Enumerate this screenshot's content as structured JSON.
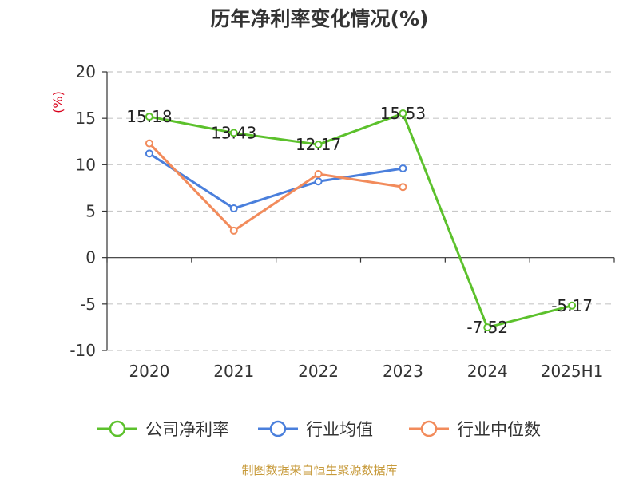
{
  "chart_data": {
    "type": "line",
    "title": "历年净利率变化情况(%)",
    "ylabel": "(%)",
    "xlabel": "",
    "categories": [
      "2020",
      "2021",
      "2022",
      "2023",
      "2024",
      "2025H1"
    ],
    "ylim": [
      -10,
      20
    ],
    "yticks": [
      -10,
      -5,
      0,
      5,
      10,
      15,
      20
    ],
    "grid": true,
    "legend_position": "bottom",
    "series": [
      {
        "name": "公司净利率",
        "color": "#5cc12c",
        "values": [
          15.18,
          13.43,
          12.17,
          15.53,
          -7.52,
          -5.17
        ],
        "labels": [
          "15.18",
          "13.43",
          "12.17",
          "15.53",
          "-7.52",
          "-5.17"
        ]
      },
      {
        "name": "行业均值",
        "color": "#4a7fdc",
        "values": [
          11.2,
          5.3,
          8.2,
          9.6,
          null,
          null
        ]
      },
      {
        "name": "行业中位数",
        "color": "#f28b5b",
        "values": [
          12.3,
          2.9,
          9.0,
          7.6,
          null,
          null
        ]
      }
    ],
    "source": "制图数据来自恒生聚源数据库"
  }
}
